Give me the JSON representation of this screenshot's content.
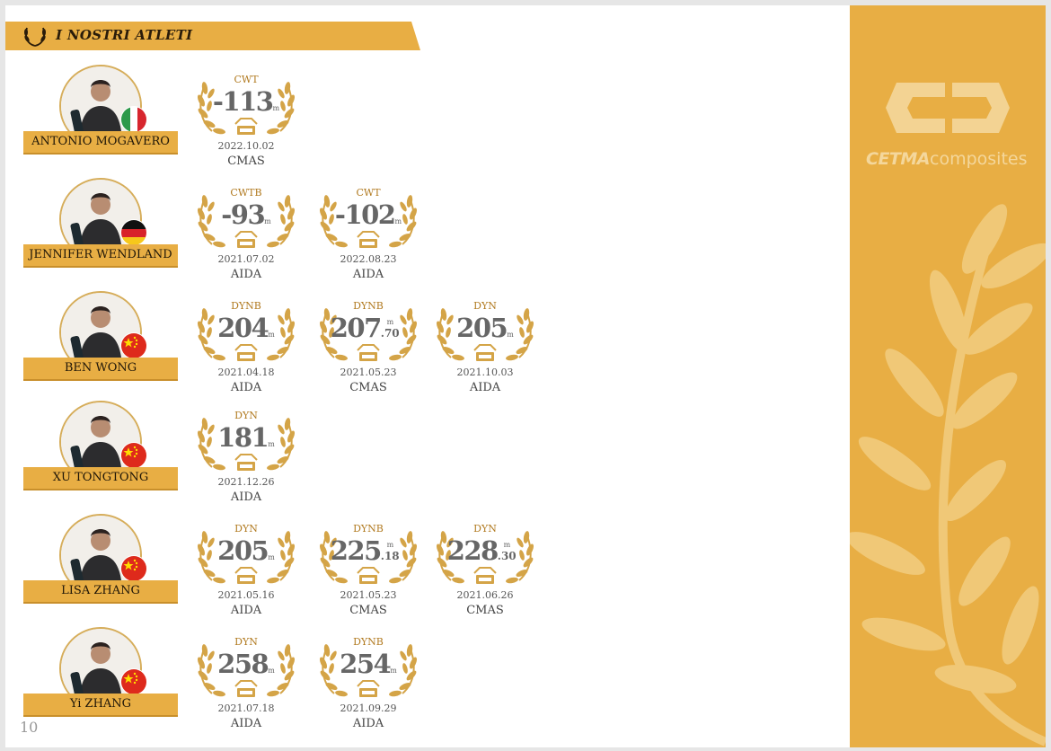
{
  "header": {
    "title": "I NOSTRI ATLETI"
  },
  "brand": {
    "logo_bold": "CETMA",
    "logo_rest": "composites"
  },
  "page_number": "10",
  "colors": {
    "gold": "#e8ae44",
    "wreath": "#d4a447",
    "value_gray": "#666666"
  },
  "athletes": [
    {
      "name": "ANTONIO MOGAVERO",
      "flag": "italy",
      "records": [
        {
          "discipline": "CWT",
          "value": "-113",
          "unit": "m",
          "decimal": "",
          "date": "2022.10.02",
          "org": "CMAS"
        }
      ]
    },
    {
      "name": "JENNIFER WENDLAND",
      "flag": "germany",
      "records": [
        {
          "discipline": "CWTB",
          "value": "-93",
          "unit": "m",
          "decimal": "",
          "date": "2021.07.02",
          "org": "AIDA"
        },
        {
          "discipline": "CWT",
          "value": "-102",
          "unit": "m",
          "decimal": "",
          "date": "2022.08.23",
          "org": "AIDA"
        }
      ]
    },
    {
      "name": "BEN WONG",
      "flag": "china",
      "records": [
        {
          "discipline": "DYNB",
          "value": "204",
          "unit": "m",
          "decimal": "",
          "date": "2021.04.18",
          "org": "AIDA"
        },
        {
          "discipline": "DYNB",
          "value": "207",
          "unit": "m",
          "decimal": ".70",
          "date": "2021.05.23",
          "org": "CMAS"
        },
        {
          "discipline": "DYN",
          "value": "205",
          "unit": "m",
          "decimal": "",
          "date": "2021.10.03",
          "org": "AIDA"
        }
      ]
    },
    {
      "name": "XU TONGTONG",
      "flag": "china",
      "records": [
        {
          "discipline": "DYN",
          "value": "181",
          "unit": "m",
          "decimal": "",
          "date": "2021.12.26",
          "org": "AIDA"
        }
      ]
    },
    {
      "name": "LISA ZHANG",
      "flag": "china",
      "records": [
        {
          "discipline": "DYN",
          "value": "205",
          "unit": "m",
          "decimal": "",
          "date": "2021.05.16",
          "org": "AIDA"
        },
        {
          "discipline": "DYNB",
          "value": "225",
          "unit": "m",
          "decimal": ".18",
          "date": "2021.05.23",
          "org": "CMAS"
        },
        {
          "discipline": "DYN",
          "value": "228",
          "unit": "m",
          "decimal": ".30",
          "date": "2021.06.26",
          "org": "CMAS"
        }
      ]
    },
    {
      "name": "Yi ZHANG",
      "flag": "china",
      "records": [
        {
          "discipline": "DYN",
          "value": "258",
          "unit": "m",
          "decimal": "",
          "date": "2021.07.18",
          "org": "AIDA"
        },
        {
          "discipline": "DYNB",
          "value": "254",
          "unit": "m",
          "decimal": "",
          "date": "2021.09.29",
          "org": "AIDA"
        }
      ]
    }
  ]
}
